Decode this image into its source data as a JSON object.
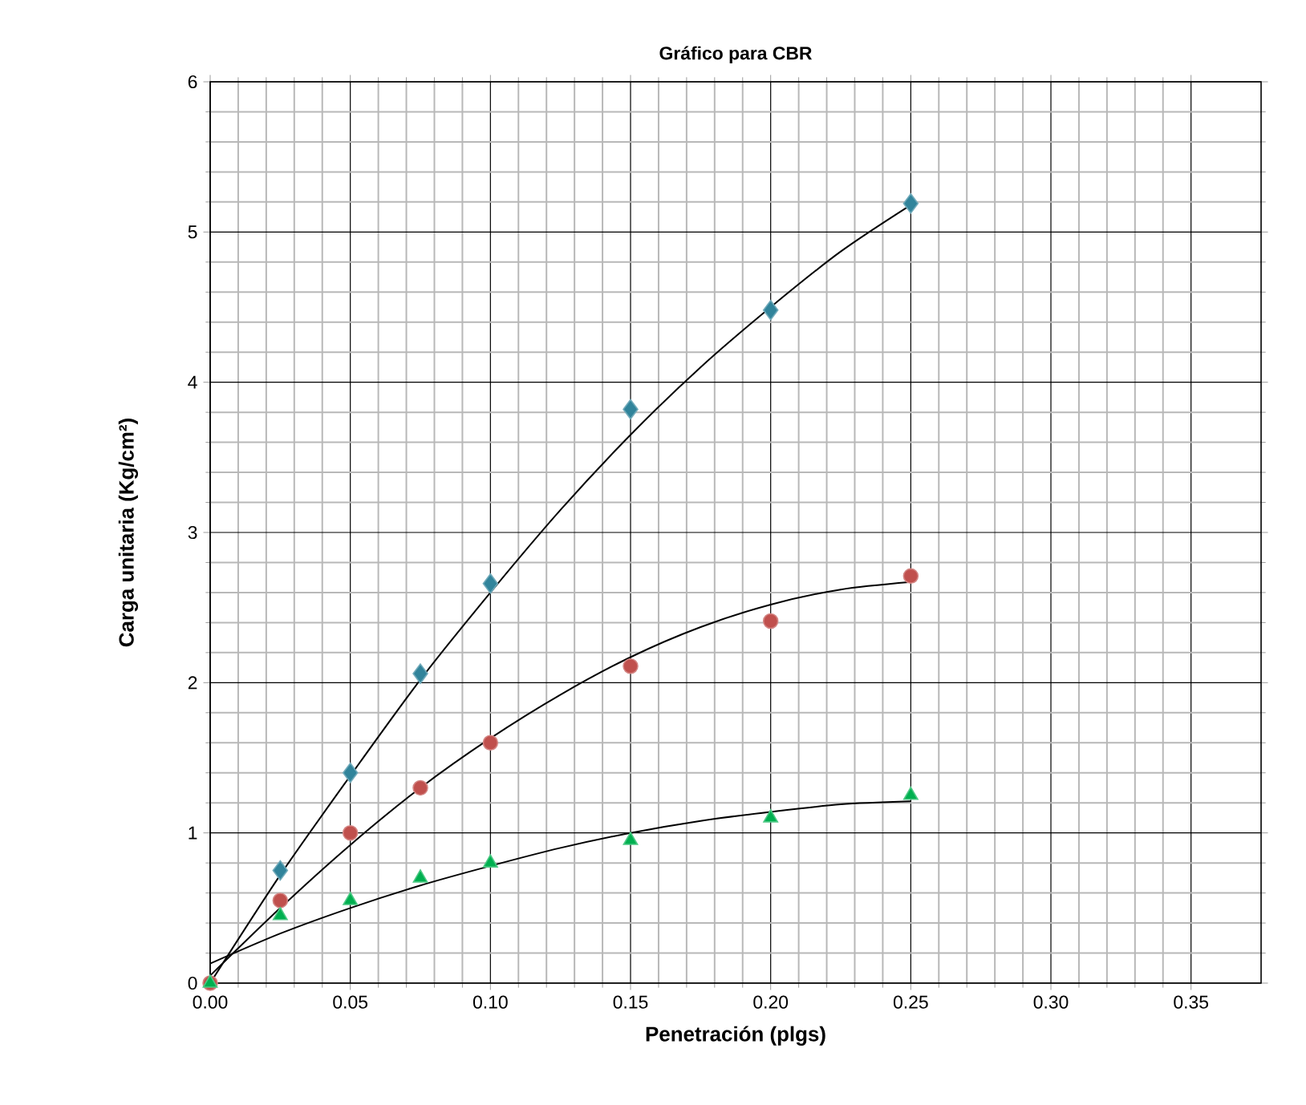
{
  "chart_data": {
    "type": "scatter",
    "title": "Gráfico para CBR",
    "xlabel": "Penetración (plgs)",
    "ylabel": "Carga unitaria (Kg/cm²)",
    "xlim": [
      0,
      0.375
    ],
    "ylim": [
      0,
      6
    ],
    "xticks": [
      {
        "value": 0,
        "label": "0.00"
      },
      {
        "value": 0.05,
        "label": "0.05"
      },
      {
        "value": 0.1,
        "label": "0.10"
      },
      {
        "value": 0.15,
        "label": "0.15"
      },
      {
        "value": 0.2,
        "label": "0.20"
      },
      {
        "value": 0.25,
        "label": "0.25"
      },
      {
        "value": 0.3,
        "label": "0.30"
      },
      {
        "value": 0.35,
        "label": "0.35"
      }
    ],
    "yticks": [
      0,
      1,
      2,
      3,
      4,
      5,
      6
    ],
    "grid": true,
    "series": [
      {
        "marker": "diamond",
        "color": "#31849b",
        "x": [
          0.025,
          0.05,
          0.075,
          0.1,
          0.15,
          0.2,
          0.25
        ],
        "values": [
          0.75,
          1.4,
          2.06,
          2.66,
          3.82,
          4.48,
          5.19
        ]
      },
      {
        "marker": "circle",
        "color": "#c0504d",
        "x": [
          0,
          0.025,
          0.05,
          0.075,
          0.1,
          0.15,
          0.2,
          0.25
        ],
        "values": [
          0,
          0.55,
          1.0,
          1.3,
          1.6,
          2.11,
          2.41,
          2.71
        ]
      },
      {
        "marker": "triangle",
        "color": "#00b050",
        "x": [
          0,
          0.025,
          0.05,
          0.075,
          0.1,
          0.15,
          0.2,
          0.25
        ],
        "values": [
          0,
          0.45,
          0.55,
          0.7,
          0.8,
          0.95,
          1.1,
          1.25
        ]
      },
      {
        "type": "line",
        "marker": "none",
        "color": "#000000",
        "x": [
          0,
          0.025,
          0.05,
          0.075,
          0.1,
          0.125,
          0.15,
          0.175,
          0.2,
          0.225,
          0.25
        ],
        "values": [
          0.0,
          0.72,
          1.38,
          2.02,
          2.6,
          3.15,
          3.65,
          4.1,
          4.5,
          4.87,
          5.18
        ]
      },
      {
        "type": "line",
        "marker": "none",
        "color": "#000000",
        "x": [
          0,
          0.025,
          0.05,
          0.075,
          0.1,
          0.125,
          0.15,
          0.175,
          0.2,
          0.225,
          0.25
        ],
        "values": [
          0.05,
          0.5,
          0.92,
          1.3,
          1.63,
          1.92,
          2.17,
          2.37,
          2.52,
          2.62,
          2.67
        ]
      },
      {
        "type": "line",
        "marker": "none",
        "color": "#000000",
        "x": [
          0,
          0.025,
          0.05,
          0.075,
          0.1,
          0.125,
          0.15,
          0.175,
          0.2,
          0.225,
          0.25
        ],
        "values": [
          0.13,
          0.33,
          0.5,
          0.65,
          0.78,
          0.9,
          1.0,
          1.08,
          1.14,
          1.19,
          1.21
        ]
      }
    ]
  }
}
